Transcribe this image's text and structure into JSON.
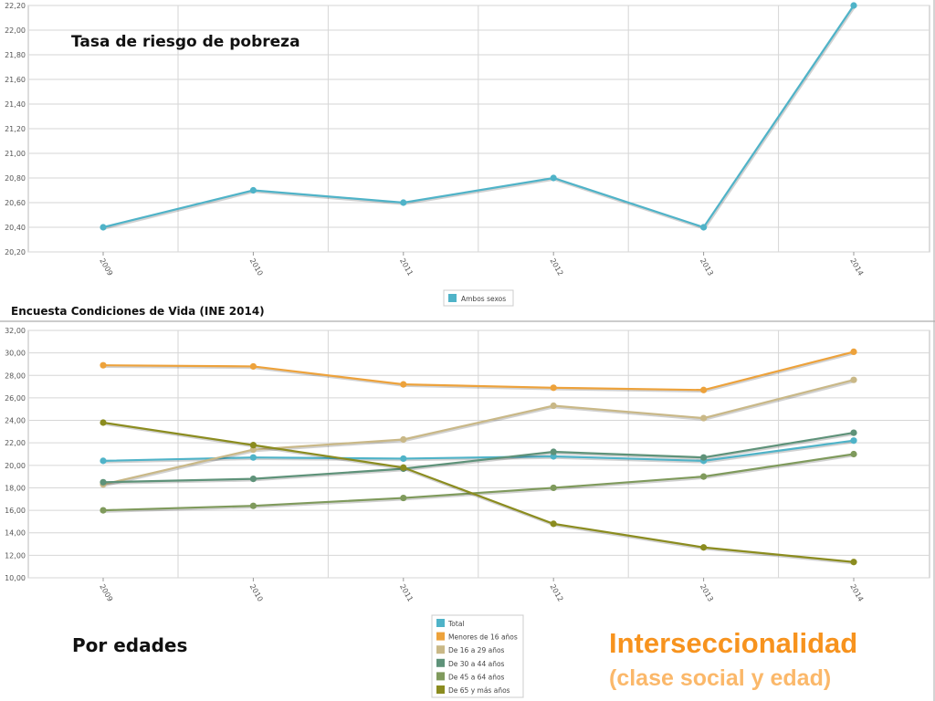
{
  "chart_data": [
    {
      "type": "line",
      "title": "Tasa de riesgo de pobreza",
      "x": [
        "2009",
        "2010",
        "2011",
        "2012",
        "2013",
        "2014"
      ],
      "ylim": [
        20.2,
        22.2
      ],
      "yticks": [
        "20,20",
        "20,40",
        "20,60",
        "20,80",
        "21,00",
        "21,20",
        "21,40",
        "21,60",
        "21,80",
        "22,00",
        "22,20"
      ],
      "grid": true,
      "legend_position": "bottom-center",
      "series": [
        {
          "name": "Ambos sexos",
          "color": "#4fb3c8",
          "values": [
            20.4,
            20.7,
            20.6,
            20.8,
            20.4,
            22.2
          ]
        }
      ]
    },
    {
      "type": "line",
      "x": [
        "2009",
        "2010",
        "2011",
        "2012",
        "2013",
        "2014"
      ],
      "ylim": [
        10,
        32
      ],
      "yticks": [
        "10,00",
        "12,00",
        "14,00",
        "16,00",
        "18,00",
        "20,00",
        "22,00",
        "24,00",
        "26,00",
        "28,00",
        "30,00",
        "32,00"
      ],
      "grid": true,
      "legend_position": "bottom-center",
      "series": [
        {
          "name": "Total",
          "color": "#4fb3c8",
          "values": [
            20.4,
            20.7,
            20.6,
            20.8,
            20.4,
            22.2
          ]
        },
        {
          "name": "Menores de 16 años",
          "color": "#eda23b",
          "values": [
            28.9,
            28.8,
            27.2,
            26.9,
            26.7,
            30.1
          ]
        },
        {
          "name": "De 16 a 29 años",
          "color": "#c9b887",
          "values": [
            18.3,
            21.4,
            22.3,
            25.3,
            24.2,
            27.6
          ]
        },
        {
          "name": "De 30 a 44 años",
          "color": "#5e9279",
          "values": [
            18.5,
            18.8,
            19.7,
            21.2,
            20.7,
            22.9
          ]
        },
        {
          "name": "De 45 a 64 años",
          "color": "#7f9a5c",
          "values": [
            16.0,
            16.4,
            17.1,
            18.0,
            19.0,
            21.0
          ]
        },
        {
          "name": "De 65 y más años",
          "color": "#8b8c1f",
          "values": [
            23.8,
            21.8,
            19.8,
            14.8,
            12.7,
            11.4
          ]
        }
      ]
    }
  ],
  "source_label": "Encuesta Condiciones de Vida (INE 2014)",
  "section_label": "Por edades",
  "heading": "Interseccionalidad",
  "subheading": "(clase social y edad)",
  "colors": {
    "heading": "#f7931e",
    "subheading": "#fbb86a",
    "grid": "#d6d6d6"
  }
}
